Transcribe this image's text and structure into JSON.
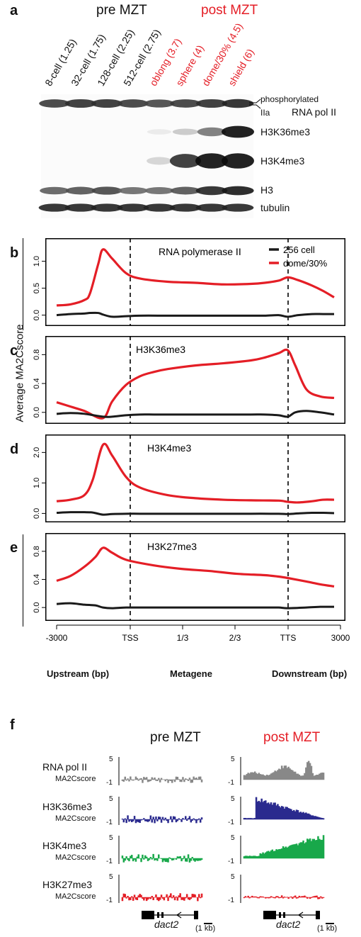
{
  "panel_a": {
    "label": "a",
    "pre_header": "pre MZT",
    "post_header": "post MZT",
    "lanes": [
      {
        "name": "8-cell (1.25)",
        "post": false
      },
      {
        "name": "32-cell (1.75)",
        "post": false
      },
      {
        "name": "128-cell (2.25)",
        "post": false
      },
      {
        "name": "512-cell (2.75)",
        "post": false
      },
      {
        "name": "oblong (3.7)",
        "post": true
      },
      {
        "name": "sphere (4)",
        "post": true
      },
      {
        "name": "dome/30% (4.5)",
        "post": true
      },
      {
        "name": "shield (6)",
        "post": true
      }
    ],
    "blot_labels": {
      "phos": "phosphorylated",
      "iia": "IIa",
      "polii": "RNA pol II",
      "h3k36": "H3K36me3",
      "h3k4": "H3K4me3",
      "h3": "H3",
      "tubulin": "tubulin"
    },
    "band_intensity": {
      "polii": [
        0.8,
        0.85,
        0.85,
        0.8,
        0.75,
        0.8,
        0.85,
        0.9
      ],
      "h3k36": [
        0,
        0,
        0,
        0,
        0.05,
        0.2,
        0.55,
        1.0
      ],
      "h3k4": [
        0,
        0,
        0,
        0,
        0.15,
        0.85,
        1.0,
        1.0
      ],
      "h3": [
        0.65,
        0.7,
        0.75,
        0.6,
        0.6,
        0.7,
        0.9,
        0.95
      ],
      "tubulin": [
        0.9,
        0.9,
        0.9,
        0.9,
        0.9,
        0.9,
        0.9,
        0.9
      ]
    }
  },
  "panels_be": {
    "ylabel": "Average MA2Cscore",
    "xticks": [
      "-3000",
      "TSS",
      "1/3",
      "2/3",
      "TTS",
      "3000"
    ],
    "xlabel_left": "Upstream (bp)",
    "xlabel_mid": "Metagene",
    "xlabel_right": "Downstream (bp)",
    "legend": [
      {
        "label": "256 cell",
        "color": "#1a1a1a"
      },
      {
        "label": "dome/30%",
        "color": "#e41e26"
      }
    ]
  },
  "chart_data": [
    {
      "type": "line",
      "label": "b",
      "title": "RNA polymerase II",
      "ylim": [
        -0.15,
        1.35
      ],
      "yticks": [
        "0.0",
        "0.5",
        "1.0"
      ],
      "ytick_values": [
        0,
        0.5,
        1.0
      ],
      "x": [
        0,
        0.05,
        0.1,
        0.12,
        0.15,
        0.167,
        0.2,
        0.25,
        0.3,
        0.4,
        0.5,
        0.6,
        0.7,
        0.75,
        0.8,
        0.833,
        0.87,
        0.92,
        0.96,
        1.0
      ],
      "series": [
        {
          "name": "dome/30%",
          "values": [
            0.18,
            0.2,
            0.28,
            0.4,
            0.95,
            1.22,
            1.05,
            0.78,
            0.68,
            0.62,
            0.6,
            0.57,
            0.58,
            0.6,
            0.64,
            0.7,
            0.65,
            0.55,
            0.45,
            0.33
          ]
        },
        {
          "name": "256 cell",
          "values": [
            0.0,
            0.02,
            0.03,
            0.04,
            0.04,
            0.01,
            -0.03,
            -0.02,
            -0.01,
            -0.01,
            -0.01,
            -0.01,
            -0.01,
            -0.01,
            0.0,
            -0.03,
            0.0,
            0.02,
            0.02,
            0.02
          ]
        }
      ]
    },
    {
      "type": "line",
      "label": "c",
      "title": "H3K36me3",
      "ylim": [
        -0.12,
        1.0
      ],
      "yticks": [
        "0.0",
        "0.4",
        "0.8"
      ],
      "ytick_values": [
        0,
        0.4,
        0.8
      ],
      "x": [
        0,
        0.05,
        0.1,
        0.167,
        0.2,
        0.25,
        0.3,
        0.35,
        0.4,
        0.5,
        0.6,
        0.7,
        0.75,
        0.8,
        0.833,
        0.86,
        0.9,
        0.95,
        1.0
      ],
      "series": [
        {
          "name": "dome/30%",
          "values": [
            0.14,
            0.08,
            0.02,
            -0.08,
            0.15,
            0.38,
            0.5,
            0.56,
            0.6,
            0.65,
            0.68,
            0.72,
            0.76,
            0.82,
            0.86,
            0.65,
            0.32,
            0.22,
            0.2
          ]
        },
        {
          "name": "256 cell",
          "values": [
            -0.02,
            -0.01,
            -0.02,
            -0.06,
            -0.06,
            -0.04,
            -0.03,
            -0.03,
            -0.03,
            -0.03,
            -0.03,
            -0.03,
            -0.03,
            -0.04,
            -0.06,
            0.0,
            0.02,
            0.0,
            -0.03
          ]
        }
      ]
    },
    {
      "type": "line",
      "label": "d",
      "title": "H3K4me3",
      "ylim": [
        -0.2,
        2.45
      ],
      "yticks": [
        "0.0",
        "1.0",
        "2.0"
      ],
      "ytick_values": [
        0,
        1.0,
        2.0
      ],
      "x": [
        0,
        0.05,
        0.1,
        0.13,
        0.167,
        0.2,
        0.25,
        0.3,
        0.4,
        0.5,
        0.6,
        0.7,
        0.8,
        0.833,
        0.87,
        0.92,
        0.96,
        1.0
      ],
      "series": [
        {
          "name": "dome/30%",
          "values": [
            0.4,
            0.45,
            0.6,
            1.1,
            2.25,
            1.9,
            1.2,
            0.85,
            0.6,
            0.5,
            0.45,
            0.43,
            0.42,
            0.38,
            0.36,
            0.4,
            0.45,
            0.45
          ]
        },
        {
          "name": "256 cell",
          "values": [
            0.02,
            0.04,
            0.04,
            0.03,
            -0.04,
            -0.02,
            -0.01,
            -0.01,
            -0.01,
            -0.01,
            -0.01,
            -0.01,
            -0.01,
            -0.02,
            0.0,
            0.02,
            0.02,
            0.01
          ]
        }
      ]
    },
    {
      "type": "line",
      "label": "e",
      "title": "H3K27me3",
      "ylim": [
        -0.15,
        1.0
      ],
      "yticks": [
        "0.0",
        "0.4",
        "0.8"
      ],
      "ytick_values": [
        0,
        0.4,
        0.8
      ],
      "x": [
        0,
        0.05,
        0.1,
        0.14,
        0.167,
        0.2,
        0.25,
        0.35,
        0.45,
        0.55,
        0.65,
        0.75,
        0.8,
        0.833,
        0.9,
        0.95,
        1.0
      ],
      "series": [
        {
          "name": "dome/30%",
          "values": [
            0.38,
            0.45,
            0.58,
            0.72,
            0.85,
            0.78,
            0.68,
            0.6,
            0.55,
            0.52,
            0.48,
            0.46,
            0.44,
            0.42,
            0.37,
            0.33,
            0.3
          ]
        },
        {
          "name": "256 cell",
          "values": [
            0.05,
            0.06,
            0.04,
            0.03,
            0.0,
            -0.01,
            0.0,
            0.0,
            0.0,
            0.0,
            0.0,
            0.0,
            0.0,
            -0.01,
            0.0,
            0.01,
            0.01
          ]
        }
      ]
    }
  ],
  "panel_f": {
    "label": "f",
    "pre_header": "pre MZT",
    "post_header": "post MZT",
    "tracks": [
      {
        "name": "RNA pol II",
        "sub": "MA2Cscore",
        "color": "#888888",
        "pre_amp": 0.15,
        "post_shape": "polii"
      },
      {
        "name": "H3K36me3",
        "sub": "MA2Cscore",
        "color": "#2a2a8e",
        "pre_amp": 0.18,
        "post_shape": "k36"
      },
      {
        "name": "H3K4me3",
        "sub": "MA2Cscore",
        "color": "#18a84a",
        "pre_amp": 0.2,
        "post_shape": "k4"
      },
      {
        "name": "H3K27me3",
        "sub": "MA2Cscore",
        "color": "#e41e26",
        "pre_amp": 0.18,
        "post_shape": "k27"
      }
    ],
    "scale_top": "5",
    "scale_bottom": "-1",
    "gene": "dact2",
    "scalebar": "(1 kb)"
  }
}
